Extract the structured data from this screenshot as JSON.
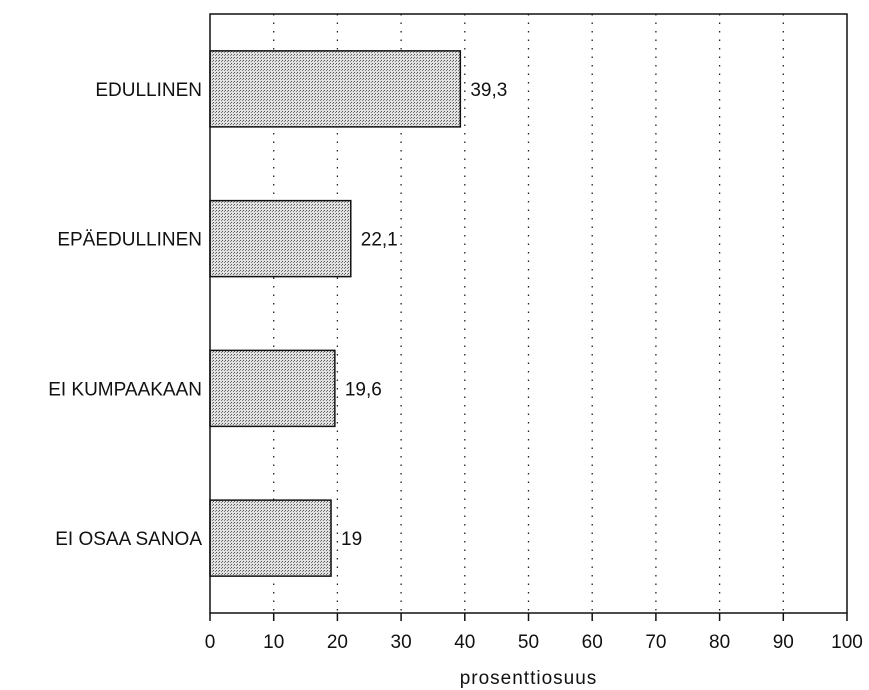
{
  "chart_data": {
    "type": "bar",
    "orientation": "horizontal",
    "categories": [
      "EDULLINEN",
      "EPÄEDULLINEN",
      "EI KUMPAAKAAN",
      "EI OSAA SANOA"
    ],
    "values": [
      39.3,
      22.1,
      19.6,
      19
    ],
    "value_labels": [
      "39,3",
      "22,1",
      "19,6",
      "19"
    ],
    "xlabel": "prosenttiosuus",
    "ylabel": "",
    "title": "",
    "xlim": [
      0,
      100
    ],
    "xticks": [
      0,
      10,
      20,
      30,
      40,
      50,
      60,
      70,
      80,
      90,
      100
    ],
    "grid": "vertical dotted",
    "legend": "none",
    "bar_fill": "#bdbdbd",
    "bar_stroke": "#111111"
  }
}
